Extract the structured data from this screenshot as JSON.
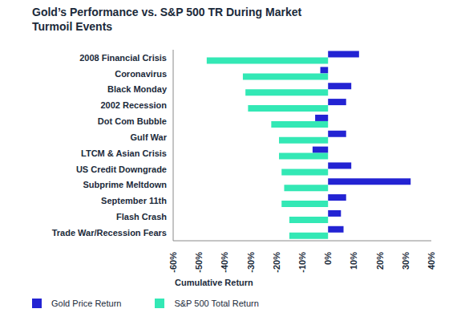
{
  "chart_data": {
    "type": "bar",
    "title": "Gold’s Performance vs. S&P 500 TR During Market Turmoil Events",
    "xlabel": "Cumulative Return",
    "orientation": "horizontal",
    "grid": false,
    "legend": "bottom",
    "categories": [
      "2008 Financial Crisis",
      "Coronavirus",
      "Black Monday",
      "2002 Recession",
      "Dot Com Bubble",
      "Gulf War",
      "LTCM & Asian Crisis",
      "US Credit Downgrade",
      "Subprime Meltdown",
      "September 11th",
      "Flash Crash",
      "Trade War/Recession Fears"
    ],
    "series": [
      {
        "name": "Gold Price Return",
        "color": "#2323d3",
        "values": [
          12,
          -3,
          9,
          7,
          -5,
          7,
          -6,
          9,
          32,
          7,
          5,
          6
        ]
      },
      {
        "name": "S&P 500 Total Return",
        "color": "#33e8b5",
        "values": [
          -47,
          -33,
          -32,
          -31,
          -22,
          -19,
          -19,
          -18,
          -17,
          -18,
          -15,
          -15
        ]
      }
    ],
    "xlim": [
      -60,
      40
    ],
    "xticks": [
      {
        "value": -60,
        "label": "-60%"
      },
      {
        "value": -50,
        "label": "-50%"
      },
      {
        "value": -40,
        "label": "-40%"
      },
      {
        "value": -30,
        "label": "-30%"
      },
      {
        "value": -20,
        "label": "-20%"
      },
      {
        "value": -10,
        "label": "-10%"
      },
      {
        "value": 0,
        "label": "0%"
      },
      {
        "value": 10,
        "label": "10%"
      },
      {
        "value": 20,
        "label": "20%"
      },
      {
        "value": 30,
        "label": "30%"
      },
      {
        "value": 40,
        "label": "40%"
      }
    ]
  }
}
